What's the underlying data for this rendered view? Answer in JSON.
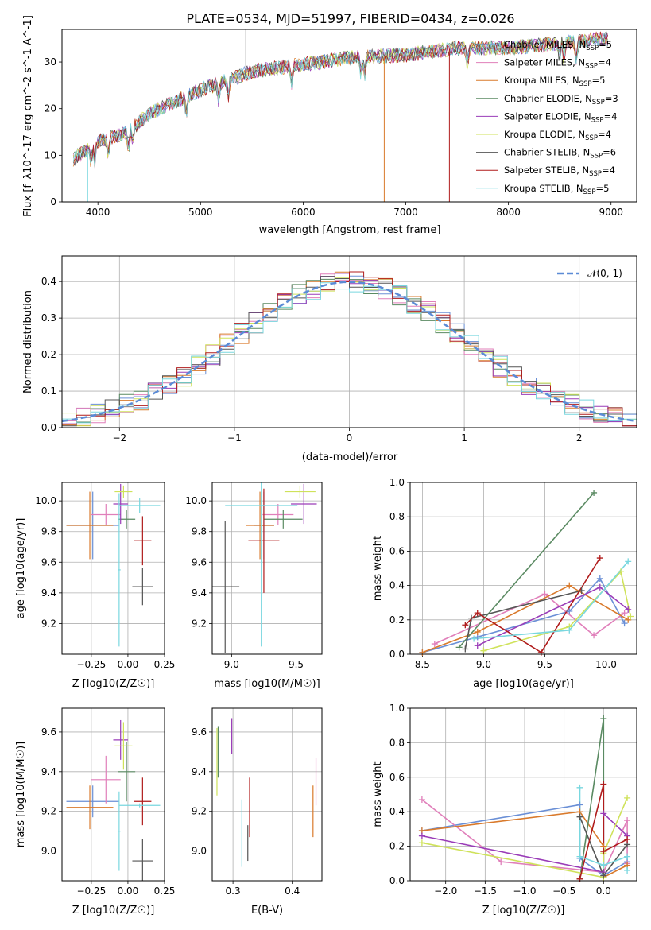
{
  "title": "PLATE=0534, MJD=51997, FIBERID=0434, z=0.026",
  "colors": {
    "Chabrier MILES": "#6a8fd6",
    "Salpeter MILES": "#e07fba",
    "Kroupa MILES": "#d97a2c",
    "Chabrier ELODIE": "#5a8a62",
    "Salpeter ELODIE": "#9a3cb8",
    "Kroupa ELODIE": "#cfe25a",
    "Chabrier STELIB": "#555555",
    "Salpeter STELIB": "#b01c1c",
    "Kroupa STELIB": "#79d7df"
  },
  "chart_data": [
    {
      "id": "spectrum",
      "type": "line",
      "xlabel": "wavelength [Angstrom, rest frame]",
      "ylabel": "Flux [f_λ10^-17 erg cm^-2 s^-1 A^-1]",
      "xlim": [
        3650,
        9250
      ],
      "ylim": [
        0,
        37
      ],
      "xticks": [
        4000,
        5000,
        6000,
        7000,
        8000,
        9000
      ],
      "yticks": [
        0,
        10,
        20,
        30
      ],
      "grid": false,
      "legend_position": "top-right",
      "legend": [
        {
          "base": "Chabrier MILES, N",
          "n": "5"
        },
        {
          "base": "Salpeter MILES, N",
          "n": "4"
        },
        {
          "base": "Kroupa MILES, N",
          "n": "5"
        },
        {
          "base": "Chabrier ELODIE, N",
          "n": "3"
        },
        {
          "base": "Salpeter ELODIE, N",
          "n": "4"
        },
        {
          "base": "Kroupa ELODIE, N",
          "n": "4"
        },
        {
          "base": "Chabrier STELIB, N",
          "n": "6"
        },
        {
          "base": "Salpeter STELIB, N",
          "n": "4"
        },
        {
          "base": "Kroupa STELIB, N",
          "n": "5"
        }
      ],
      "legend_sub": "SSP",
      "continuum": {
        "x": [
          3750,
          4000,
          4300,
          4500,
          5000,
          5500,
          6000,
          6500,
          7000,
          7500,
          8000,
          8500,
          8900
        ],
        "y": [
          9,
          13,
          15,
          19,
          24,
          28,
          29.5,
          31,
          31.5,
          33,
          33,
          34,
          35
        ]
      }
    },
    {
      "id": "residuals",
      "type": "line",
      "xlabel": "(data-model)/error",
      "ylabel": "Normed distribution",
      "xlim": [
        -2.5,
        2.5
      ],
      "ylim": [
        0,
        0.47
      ],
      "xticks": [
        -2,
        -1,
        0,
        1,
        2
      ],
      "yticks": [
        0.0,
        0.1,
        0.2,
        0.3,
        0.4
      ],
      "grid": true,
      "legend_position": "top-right",
      "legend_label": "𝒩(0, 1)",
      "bin_width": 0.125
    },
    {
      "id": "age-vs-Z",
      "type": "scatter",
      "xlabel": "Z [log10(Z/Z☉)]",
      "ylabel": "age [log10(age/yr)]",
      "xlim": [
        -0.45,
        0.25
      ],
      "ylim": [
        9.0,
        10.12
      ],
      "xticks": [
        -0.25,
        0.0,
        0.25
      ],
      "yticks": [
        9.2,
        9.4,
        9.6,
        9.8,
        10.0
      ],
      "grid": true,
      "points": [
        {
          "model": "Chabrier MILES",
          "x": -0.24,
          "xerr": 0.18,
          "y": 9.84,
          "yerr": 0.22
        },
        {
          "model": "Salpeter MILES",
          "x": -0.15,
          "xerr": 0.1,
          "y": 9.91,
          "yerr": 0.07
        },
        {
          "model": "Kroupa MILES",
          "x": -0.26,
          "xerr": 0.16,
          "y": 9.84,
          "yerr": 0.22
        },
        {
          "model": "Chabrier ELODIE",
          "x": -0.01,
          "xerr": 0.06,
          "y": 9.88,
          "yerr": 0.06
        },
        {
          "model": "Salpeter ELODIE",
          "x": -0.05,
          "xerr": 0.05,
          "y": 9.98,
          "yerr": 0.13
        },
        {
          "model": "Kroupa ELODIE",
          "x": -0.03,
          "xerr": 0.06,
          "y": 10.06,
          "yerr": 0.04
        },
        {
          "model": "Chabrier STELIB",
          "x": 0.1,
          "xerr": 0.07,
          "y": 9.44,
          "yerr": 0.12
        },
        {
          "model": "Salpeter STELIB",
          "x": 0.1,
          "xerr": 0.06,
          "y": 9.74,
          "yerr": 0.16
        },
        {
          "model": "Kroupa STELIB",
          "x": 0.08,
          "xerr": 0.14,
          "y": 9.97,
          "yerr": 0.05
        },
        {
          "model": "Kroupa STELIB",
          "x": -0.06,
          "xerr": 0.01,
          "y": 9.55,
          "yerr": 0.5
        }
      ]
    },
    {
      "id": "age-vs-mass",
      "type": "scatter",
      "xlabel": "mass [log10(M/M☉)]",
      "ylabel": "",
      "xlim": [
        8.85,
        9.7
      ],
      "ylim": [
        9.0,
        10.12
      ],
      "xticks": [
        9.0,
        9.5
      ],
      "yticks": [
        9.2,
        9.4,
        9.6,
        9.8,
        10.0
      ],
      "grid": true,
      "points": [
        {
          "model": "Chabrier MILES",
          "x": 9.25,
          "xerr": 0.08,
          "y": 9.84,
          "yerr": 0.22
        },
        {
          "model": "Salpeter MILES",
          "x": 9.36,
          "xerr": 0.12,
          "y": 9.91,
          "yerr": 0.07
        },
        {
          "model": "Kroupa MILES",
          "x": 9.22,
          "xerr": 0.11,
          "y": 9.84,
          "yerr": 0.22
        },
        {
          "model": "Chabrier ELODIE",
          "x": 9.4,
          "xerr": 0.15,
          "y": 9.88,
          "yerr": 0.06
        },
        {
          "model": "Salpeter ELODIE",
          "x": 9.56,
          "xerr": 0.1,
          "y": 9.98,
          "yerr": 0.13
        },
        {
          "model": "Kroupa ELODIE",
          "x": 9.53,
          "xerr": 0.12,
          "y": 10.06,
          "yerr": 0.04
        },
        {
          "model": "Chabrier STELIB",
          "x": 8.95,
          "xerr": 0.11,
          "y": 9.44,
          "yerr": 0.43
        },
        {
          "model": "Salpeter STELIB",
          "x": 9.25,
          "xerr": 0.12,
          "y": 9.74,
          "yerr": 0.34
        },
        {
          "model": "Kroupa STELIB",
          "x": 9.23,
          "xerr": 0.28,
          "y": 9.97,
          "yerr": 0.92
        }
      ]
    },
    {
      "id": "mass-weight-vs-age",
      "type": "line",
      "xlabel": "age [log10(age/yr)]",
      "ylabel": "mass weight",
      "xlim": [
        8.4,
        10.25
      ],
      "ylim": [
        0,
        1.0
      ],
      "xticks": [
        8.5,
        9.0,
        9.5,
        10.0
      ],
      "yticks": [
        0.0,
        0.2,
        0.4,
        0.6,
        0.8,
        1.0
      ],
      "grid": true,
      "series": [
        {
          "model": "Chabrier MILES",
          "points": [
            [
              8.5,
              0.01
            ],
            [
              8.95,
              0.1
            ],
            [
              9.7,
              0.25
            ],
            [
              9.95,
              0.44
            ],
            [
              10.15,
              0.18
            ]
          ]
        },
        {
          "model": "Salpeter MILES",
          "points": [
            [
              8.6,
              0.06
            ],
            [
              9.5,
              0.35
            ],
            [
              9.9,
              0.11
            ],
            [
              10.15,
              0.24
            ]
          ]
        },
        {
          "model": "Kroupa MILES",
          "points": [
            [
              8.5,
              0.01
            ],
            [
              8.95,
              0.13
            ],
            [
              9.7,
              0.4
            ],
            [
              10.18,
              0.2
            ]
          ]
        },
        {
          "model": "Chabrier ELODIE",
          "points": [
            [
              8.8,
              0.04
            ],
            [
              9.9,
              0.94
            ]
          ]
        },
        {
          "model": "Salpeter ELODIE",
          "points": [
            [
              8.95,
              0.05
            ],
            [
              9.95,
              0.39
            ],
            [
              10.18,
              0.26
            ]
          ]
        },
        {
          "model": "Kroupa ELODIE",
          "points": [
            [
              9.0,
              0.02
            ],
            [
              9.7,
              0.16
            ],
            [
              10.12,
              0.48
            ],
            [
              10.2,
              0.22
            ]
          ]
        },
        {
          "model": "Chabrier STELIB",
          "points": [
            [
              8.85,
              0.03
            ],
            [
              8.9,
              0.21
            ],
            [
              9.8,
              0.37
            ]
          ]
        },
        {
          "model": "Salpeter STELIB",
          "points": [
            [
              8.85,
              0.17
            ],
            [
              8.95,
              0.24
            ],
            [
              9.47,
              0.01
            ],
            [
              9.95,
              0.56
            ]
          ]
        },
        {
          "model": "Kroupa STELIB",
          "points": [
            [
              8.92,
              0.09
            ],
            [
              9.7,
              0.14
            ],
            [
              10.18,
              0.54
            ]
          ]
        }
      ]
    },
    {
      "id": "mass-vs-Z",
      "type": "scatter",
      "xlabel": "Z [log10(Z/Z☉)]",
      "ylabel": "mass [log10(M/M☉)]",
      "xlim": [
        -0.45,
        0.25
      ],
      "ylim": [
        8.85,
        9.72
      ],
      "xticks": [
        -0.25,
        0.0,
        0.25
      ],
      "yticks": [
        9.0,
        9.2,
        9.4,
        9.6
      ],
      "grid": true,
      "points": [
        {
          "model": "Chabrier MILES",
          "x": -0.24,
          "xerr": 0.18,
          "y": 9.25,
          "yerr": 0.08
        },
        {
          "model": "Salpeter MILES",
          "x": -0.15,
          "xerr": 0.1,
          "y": 9.36,
          "yerr": 0.12
        },
        {
          "model": "Kroupa MILES",
          "x": -0.26,
          "xerr": 0.16,
          "y": 9.22,
          "yerr": 0.11
        },
        {
          "model": "Chabrier ELODIE",
          "x": -0.01,
          "xerr": 0.06,
          "y": 9.4,
          "yerr": 0.15
        },
        {
          "model": "Salpeter ELODIE",
          "x": -0.05,
          "xerr": 0.05,
          "y": 9.56,
          "yerr": 0.1
        },
        {
          "model": "Kroupa ELODIE",
          "x": -0.03,
          "xerr": 0.06,
          "y": 9.53,
          "yerr": 0.12
        },
        {
          "model": "Chabrier STELIB",
          "x": 0.1,
          "xerr": 0.07,
          "y": 8.95,
          "yerr": 0.11
        },
        {
          "model": "Salpeter STELIB",
          "x": 0.1,
          "xerr": 0.06,
          "y": 9.25,
          "yerr": 0.12
        },
        {
          "model": "Kroupa STELIB",
          "x": 0.08,
          "xerr": 0.14,
          "y": 9.23,
          "yerr": 0.01
        },
        {
          "model": "Kroupa STELIB",
          "x": -0.06,
          "xerr": 0.01,
          "y": 9.1,
          "yerr": 0.2
        }
      ]
    },
    {
      "id": "mass-vs-EBV",
      "type": "scatter",
      "xlabel": "E(B-V)",
      "ylabel": "",
      "xlim": [
        0.265,
        0.45
      ],
      "ylim": [
        8.85,
        9.72
      ],
      "xticks": [
        0.3,
        0.4
      ],
      "yticks": [
        9.0,
        9.2,
        9.4,
        9.6
      ],
      "grid": true,
      "points": [
        {
          "model": "Kroupa ELODIE",
          "x": 0.273,
          "y": 9.45,
          "yerr": 0.17
        },
        {
          "model": "Chabrier ELODIE",
          "x": 0.275,
          "y": 9.5,
          "yerr": 0.13
        },
        {
          "model": "Salpeter ELODIE",
          "x": 0.298,
          "y": 9.58,
          "yerr": 0.09
        },
        {
          "model": "Kroupa STELIB",
          "x": 0.315,
          "y": 9.09,
          "yerr": 0.17
        },
        {
          "model": "Chabrier STELIB",
          "x": 0.325,
          "y": 9.04,
          "yerr": 0.09
        },
        {
          "model": "Salpeter STELIB",
          "x": 0.328,
          "y": 9.22,
          "yerr": 0.15
        },
        {
          "model": "Kroupa MILES",
          "x": 0.435,
          "y": 9.2,
          "yerr": 0.13
        },
        {
          "model": "Salpeter MILES",
          "x": 0.44,
          "y": 9.35,
          "yerr": 0.12
        }
      ]
    },
    {
      "id": "mass-weight-vs-Z",
      "type": "line",
      "xlabel": "Z [log10(Z/Z☉)]",
      "ylabel": "mass weight",
      "xlim": [
        -2.45,
        0.42
      ],
      "ylim": [
        0,
        1.0
      ],
      "xticks": [
        -2.0,
        -1.5,
        -1.0,
        -0.5,
        0.0
      ],
      "yticks": [
        0.0,
        0.2,
        0.4,
        0.6,
        0.8,
        1.0
      ],
      "grid": true,
      "series": [
        {
          "model": "Chabrier MILES",
          "points": [
            [
              -2.3,
              0.29
            ],
            [
              -0.3,
              0.44
            ],
            [
              -0.3,
              0.13
            ],
            [
              0.0,
              0.03
            ],
            [
              0.3,
              0.11
            ]
          ]
        },
        {
          "model": "Salpeter MILES",
          "points": [
            [
              -2.3,
              0.47
            ],
            [
              -1.3,
              0.11
            ],
            [
              0.0,
              0.05
            ],
            [
              0.3,
              0.35
            ],
            [
              0.3,
              0.1
            ]
          ]
        },
        {
          "model": "Kroupa MILES",
          "points": [
            [
              -2.3,
              0.29
            ],
            [
              -0.3,
              0.4
            ],
            [
              0.0,
              0.2
            ],
            [
              0.0,
              0.02
            ],
            [
              0.3,
              0.09
            ]
          ]
        },
        {
          "model": "Chabrier ELODIE",
          "points": [
            [
              -0.3,
              0.01
            ],
            [
              0.0,
              0.94
            ],
            [
              0.0,
              0.05
            ]
          ]
        },
        {
          "model": "Salpeter ELODIE",
          "points": [
            [
              -2.3,
              0.26
            ],
            [
              0.0,
              0.05
            ],
            [
              0.0,
              0.39
            ],
            [
              0.3,
              0.26
            ]
          ]
        },
        {
          "model": "Kroupa ELODIE",
          "points": [
            [
              -2.3,
              0.22
            ],
            [
              0.0,
              0.02
            ],
            [
              0.0,
              0.16
            ],
            [
              0.3,
              0.48
            ]
          ]
        },
        {
          "model": "Chabrier STELIB",
          "points": [
            [
              -0.3,
              0.37
            ],
            [
              0.0,
              0.03
            ],
            [
              0.3,
              0.21
            ]
          ]
        },
        {
          "model": "Salpeter STELIB",
          "points": [
            [
              -0.3,
              0.01
            ],
            [
              0.0,
              0.56
            ],
            [
              0.0,
              0.17
            ],
            [
              0.3,
              0.24
            ]
          ]
        },
        {
          "model": "Kroupa STELIB",
          "points": [
            [
              -0.3,
              0.54
            ],
            [
              -0.3,
              0.14
            ],
            [
              0.0,
              0.09
            ],
            [
              0.3,
              0.14
            ],
            [
              0.3,
              0.06
            ]
          ]
        }
      ]
    }
  ]
}
